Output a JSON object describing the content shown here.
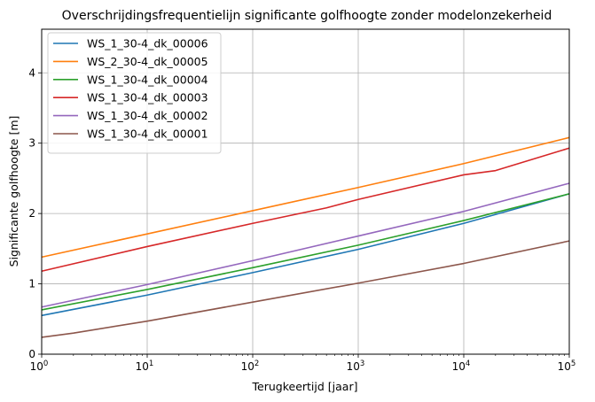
{
  "chart_data": {
    "type": "line",
    "title": "Overschrijdingsfrequentielijn significante golfhoogte zonder modelonzekerheid",
    "xlabel": "Terugkeertijd [jaar]",
    "ylabel": "Significante golfhoogte [m]",
    "xscale": "log",
    "xlim": [
      1,
      100000
    ],
    "ylim": [
      0,
      4.62
    ],
    "xticks": [
      {
        "base": "10",
        "exp": "0",
        "value": 1
      },
      {
        "base": "10",
        "exp": "1",
        "value": 10
      },
      {
        "base": "10",
        "exp": "2",
        "value": 100
      },
      {
        "base": "10",
        "exp": "3",
        "value": 1000
      },
      {
        "base": "10",
        "exp": "4",
        "value": 10000
      },
      {
        "base": "10",
        "exp": "5",
        "value": 100000
      }
    ],
    "yticks": [
      "0",
      "1",
      "2",
      "3",
      "4"
    ],
    "grid": true,
    "legend_position": "top-left",
    "series": [
      {
        "name": "WS_1_30-4_dk_00006",
        "color": "#1f77b4",
        "x": [
          1,
          10,
          100,
          1000,
          10000,
          100000
        ],
        "y": [
          0.55,
          0.84,
          1.16,
          1.49,
          1.86,
          2.28
        ]
      },
      {
        "name": "WS_2_30-4_dk_00005",
        "color": "#ff7f0e",
        "x": [
          1,
          10,
          100,
          1000,
          10000,
          100000
        ],
        "y": [
          1.38,
          1.71,
          2.04,
          2.37,
          2.71,
          3.08
        ]
      },
      {
        "name": "WS_1_30-4_dk_00004",
        "color": "#2ca02c",
        "x": [
          1,
          10,
          100,
          1000,
          10000,
          100000
        ],
        "y": [
          0.63,
          0.92,
          1.23,
          1.55,
          1.9,
          2.28
        ]
      },
      {
        "name": "WS_1_30-4_dk_00003",
        "color": "#d62728",
        "x": [
          1,
          10,
          100,
          500,
          1000,
          10000,
          20000,
          100000
        ],
        "y": [
          1.18,
          1.53,
          1.86,
          2.08,
          2.2,
          2.55,
          2.61,
          2.93
        ]
      },
      {
        "name": "WS_1_30-4_dk_00002",
        "color": "#9467bd",
        "x": [
          1,
          10,
          100,
          1000,
          10000,
          100000
        ],
        "y": [
          0.67,
          0.99,
          1.33,
          1.68,
          2.03,
          2.43
        ]
      },
      {
        "name": "WS_1_30-4_dk_00001",
        "color": "#8c564b",
        "x": [
          1,
          2,
          10,
          100,
          1000,
          10000,
          100000
        ],
        "y": [
          0.24,
          0.3,
          0.47,
          0.74,
          1.01,
          1.29,
          1.61
        ]
      }
    ]
  }
}
